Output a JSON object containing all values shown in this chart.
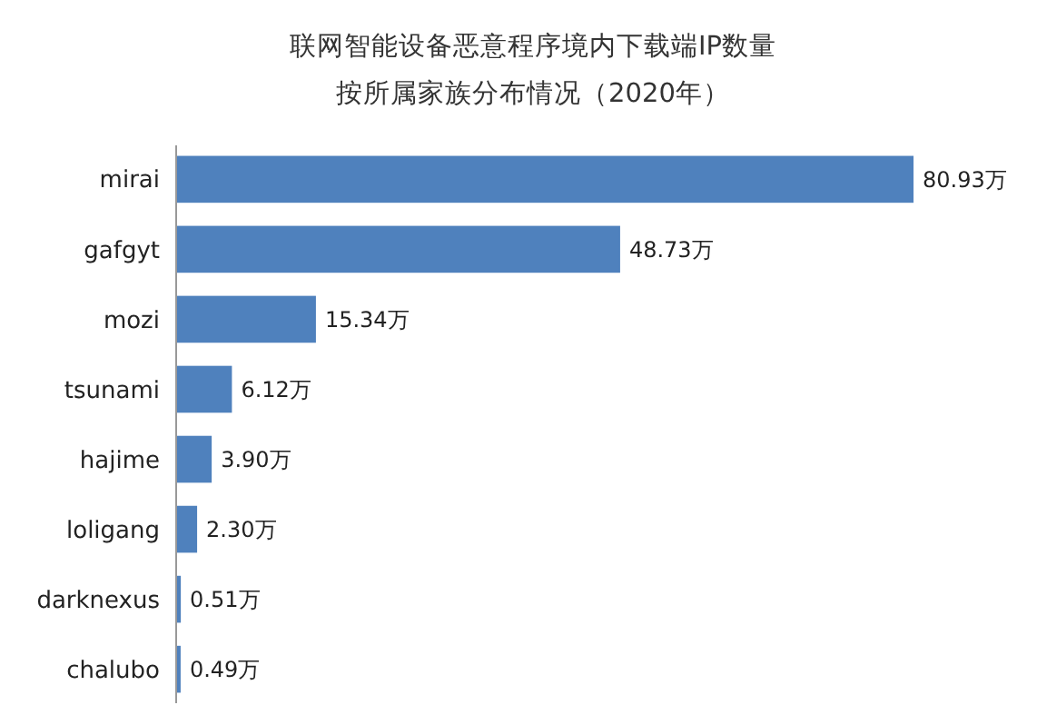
{
  "chart_data": {
    "type": "bar",
    "orientation": "horizontal",
    "title": "联网智能设备恶意程序境内下载端IP数量",
    "subtitle": "按所属家族分布情况（2020年）",
    "categories": [
      "mirai",
      "gafgyt",
      "mozi",
      "tsunami",
      "hajime",
      "loligang",
      "darknexus",
      "chalubo"
    ],
    "values": [
      80.93,
      48.73,
      15.34,
      6.12,
      3.9,
      2.3,
      0.51,
      0.49
    ],
    "value_labels": [
      "80.93万",
      "48.73万",
      "15.34万",
      "6.12万",
      "3.90万",
      "2.30万",
      "0.51万",
      "0.49万"
    ],
    "color": "#4f81bd"
  }
}
